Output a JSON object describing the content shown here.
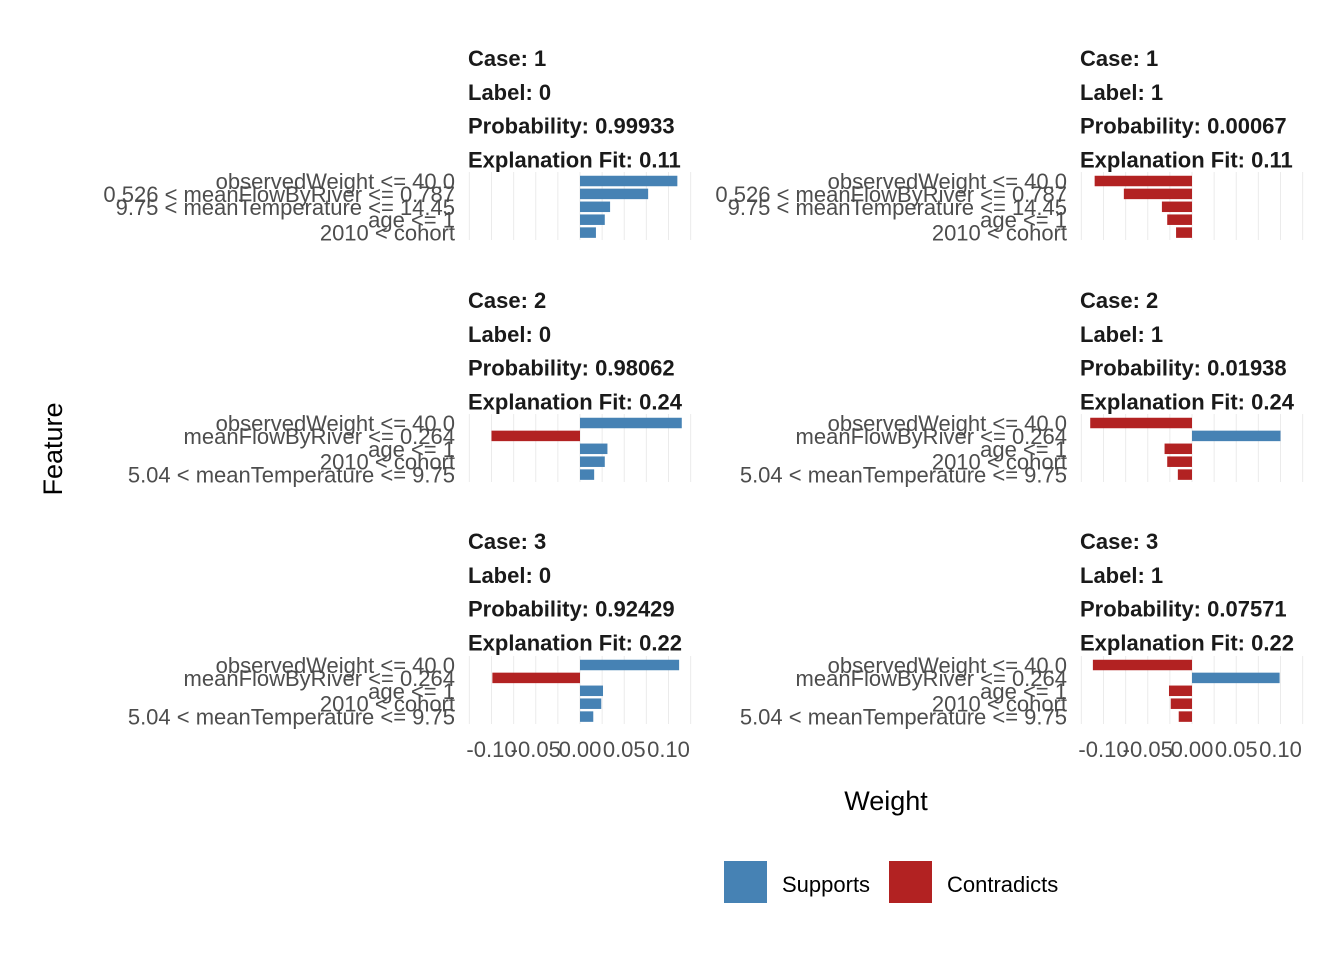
{
  "chart_data": {
    "type": "bar",
    "orientation": "horizontal",
    "xlabel": "Weight",
    "ylabel": "Feature",
    "xlim": [
      -0.12,
      0.125
    ],
    "x_ticks": [
      "-0.10",
      "-0.05",
      "0.00",
      "0.05",
      "0.10"
    ],
    "x_tick_values": [
      -0.1,
      -0.05,
      0.0,
      0.05,
      0.1
    ],
    "grid": true,
    "legend": {
      "position": "bottom",
      "entries": [
        {
          "label": "Supports",
          "color": "#4682B4"
        },
        {
          "label": "Contradicts",
          "color": "#B22222"
        }
      ]
    },
    "panels": [
      {
        "case": "Case: 1",
        "label": "Label: 0",
        "probability": "Probability: 0.99933",
        "fit": "Explanation Fit: 0.11",
        "features": [
          "observedWeight <= 40.0",
          "0.526 < meanFlowByRiver <= 0.787",
          "9.75 < meanTemperature <= 14.45",
          "age <= 1",
          "2010 < cohort"
        ],
        "values": [
          0.11,
          0.077,
          0.034,
          0.028,
          0.018
        ]
      },
      {
        "case": "Case: 1",
        "label": "Label: 1",
        "probability": "Probability: 0.00067",
        "fit": "Explanation Fit: 0.11",
        "features": [
          "observedWeight <= 40.0",
          "0.526 < meanFlowByRiver <= 0.787",
          "9.75 < meanTemperature <= 14.45",
          "age <= 1",
          "2010 < cohort"
        ],
        "values": [
          -0.11,
          -0.077,
          -0.034,
          -0.028,
          -0.018
        ]
      },
      {
        "case": "Case: 2",
        "label": "Label: 0",
        "probability": "Probability: 0.98062",
        "fit": "Explanation Fit: 0.24",
        "features": [
          "observedWeight <= 40.0",
          "meanFlowByRiver <= 0.264",
          "age <= 1",
          "2010 < cohort",
          "5.04 < meanTemperature <= 9.75"
        ],
        "values": [
          0.115,
          -0.1,
          0.031,
          0.028,
          0.016
        ]
      },
      {
        "case": "Case: 2",
        "label": "Label: 1",
        "probability": "Probability: 0.01938",
        "fit": "Explanation Fit: 0.24",
        "features": [
          "observedWeight <= 40.0",
          "meanFlowByRiver <= 0.264",
          "age <= 1",
          "2010 < cohort",
          "5.04 < meanTemperature <= 9.75"
        ],
        "values": [
          -0.115,
          0.1,
          -0.031,
          -0.028,
          -0.016
        ]
      },
      {
        "case": "Case: 3",
        "label": "Label: 0",
        "probability": "Probability: 0.92429",
        "fit": "Explanation Fit: 0.22",
        "features": [
          "observedWeight <= 40.0",
          "meanFlowByRiver <= 0.264",
          "age <= 1",
          "2010 < cohort",
          "5.04 < meanTemperature <= 9.75"
        ],
        "values": [
          0.112,
          -0.099,
          0.026,
          0.024,
          0.015
        ]
      },
      {
        "case": "Case: 3",
        "label": "Label: 1",
        "probability": "Probability: 0.07571",
        "fit": "Explanation Fit: 0.22",
        "features": [
          "observedWeight <= 40.0",
          "meanFlowByRiver <= 0.264",
          "age <= 1",
          "2010 < cohort",
          "5.04 < meanTemperature <= 9.75"
        ],
        "values": [
          -0.112,
          0.099,
          -0.026,
          -0.024,
          -0.015
        ]
      }
    ]
  }
}
